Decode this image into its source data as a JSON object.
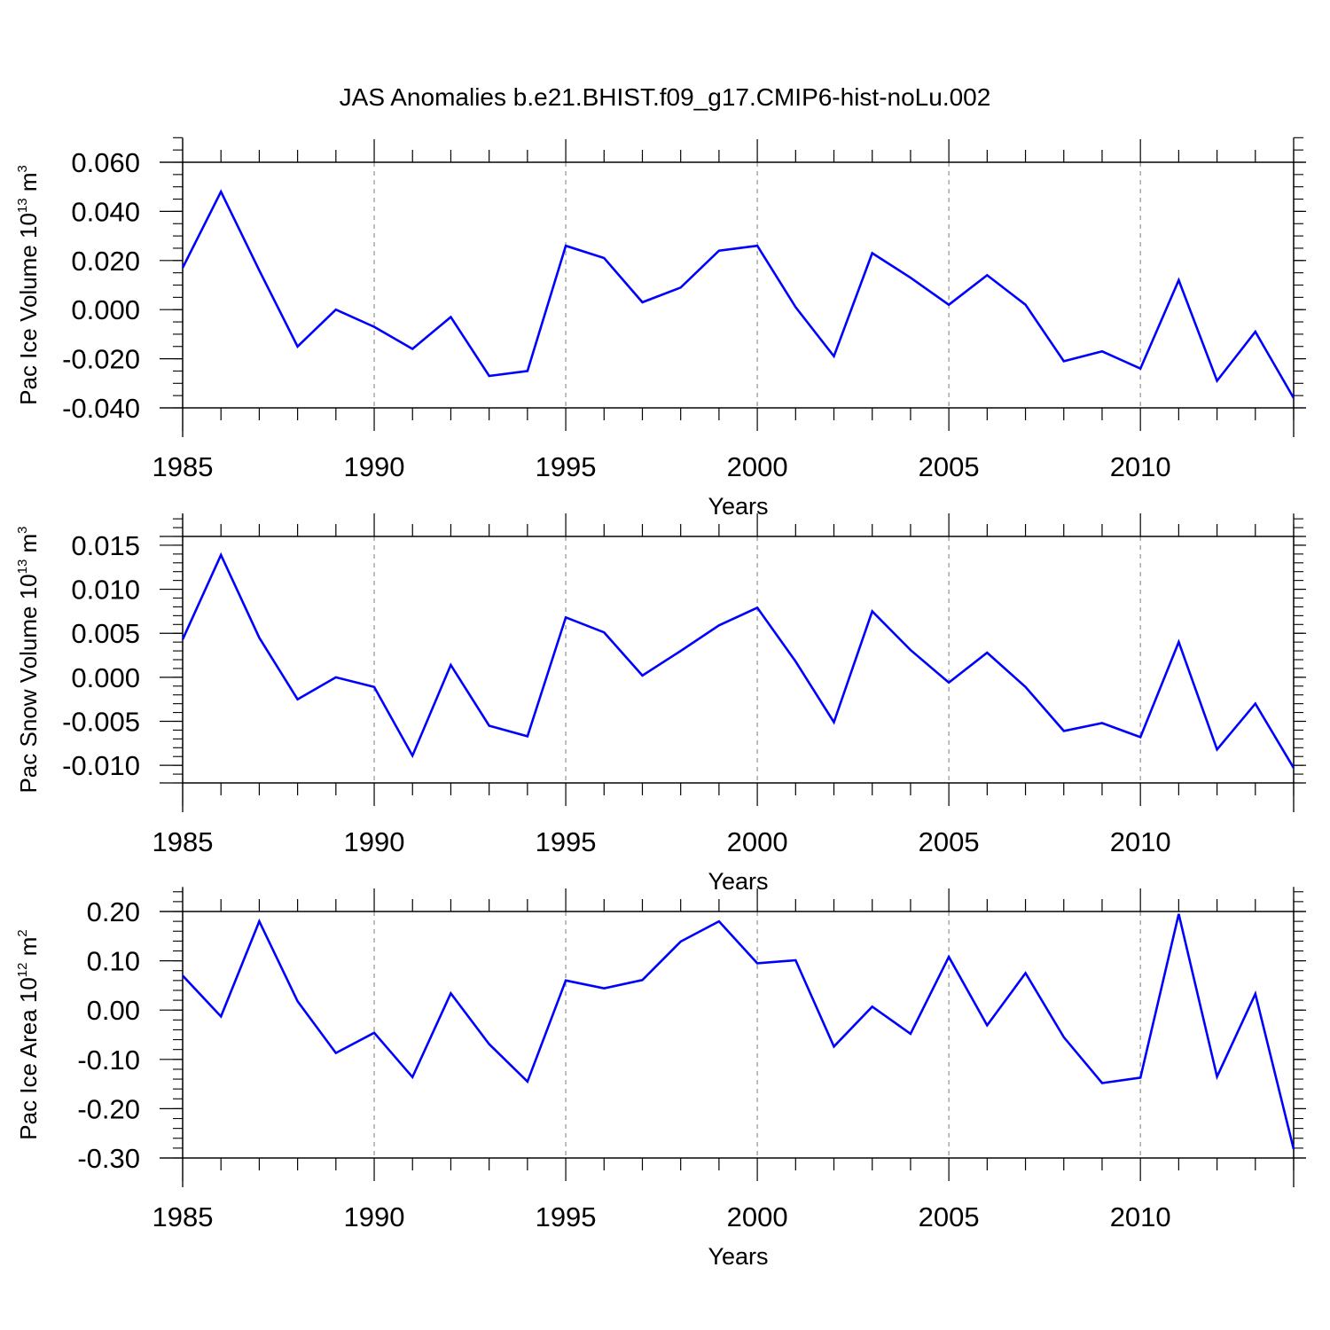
{
  "title": "JAS Anomalies b.e21.BHIST.f09_g17.CMIP6-hist-noLu.002",
  "colors": {
    "series": "#0000ff",
    "frame": "#000000",
    "grid": "#9a9a9a"
  },
  "chart_data": [
    {
      "type": "line",
      "ylabel": {
        "text": "Pac Ice Volume 10",
        "exp": "13",
        "unit": " m",
        "unit_exp": "3"
      },
      "xlabel": "Years",
      "xlim": [
        1985,
        2014
      ],
      "ylim": [
        -0.04,
        0.06
      ],
      "yticks": [
        -0.04,
        -0.02,
        0.0,
        0.02,
        0.04,
        0.06
      ],
      "ytick_labels": [
        "-0.040",
        "-0.020",
        "0.000",
        "0.020",
        "0.040",
        "0.060"
      ],
      "y_minor_step": 0.005,
      "ext_top": 0.01,
      "xticks": [
        1985,
        1990,
        1995,
        2000,
        2005,
        2010
      ],
      "xtick_labels": [
        "1985",
        "1990",
        "1995",
        "2000",
        "2005",
        "2010"
      ],
      "grid_x": [
        1990,
        1995,
        2000,
        2005,
        2010
      ],
      "x": [
        1985,
        1986,
        1987,
        1988,
        1989,
        1990,
        1991,
        1992,
        1993,
        1994,
        1995,
        1996,
        1997,
        1998,
        1999,
        2000,
        2001,
        2002,
        2003,
        2004,
        2005,
        2006,
        2007,
        2008,
        2009,
        2010,
        2011,
        2012,
        2013,
        2014
      ],
      "series": [
        {
          "name": "Pac Ice Volume",
          "values": [
            0.017,
            0.048,
            0.016,
            -0.015,
            0.0,
            -0.007,
            -0.016,
            -0.003,
            -0.027,
            -0.025,
            0.026,
            0.021,
            0.003,
            0.009,
            0.024,
            0.026,
            0.001,
            -0.019,
            0.023,
            0.013,
            0.002,
            0.014,
            0.002,
            -0.021,
            -0.017,
            -0.024,
            0.012,
            -0.029,
            -0.009,
            -0.036
          ]
        }
      ]
    },
    {
      "type": "line",
      "ylabel": {
        "text": "Pac Snow Volume 10",
        "exp": "13",
        "unit": " m",
        "unit_exp": "3"
      },
      "xlabel": "Years",
      "xlim": [
        1985,
        2014
      ],
      "ylim": [
        -0.012,
        0.016
      ],
      "yticks": [
        -0.01,
        -0.005,
        0.0,
        0.005,
        0.01,
        0.015
      ],
      "ytick_labels": [
        "-0.010",
        "-0.005",
        "0.000",
        "0.005",
        "0.010",
        "0.015"
      ],
      "y_minor_step": 0.001,
      "ext_top": 0.0026,
      "xticks": [
        1985,
        1990,
        1995,
        2000,
        2005,
        2010
      ],
      "xtick_labels": [
        "1985",
        "1990",
        "1995",
        "2000",
        "2005",
        "2010"
      ],
      "grid_x": [
        1990,
        1995,
        2000,
        2005,
        2010
      ],
      "x": [
        1985,
        1986,
        1987,
        1988,
        1989,
        1990,
        1991,
        1992,
        1993,
        1994,
        1995,
        1996,
        1997,
        1998,
        1999,
        2000,
        2001,
        2002,
        2003,
        2004,
        2005,
        2006,
        2007,
        2008,
        2009,
        2010,
        2011,
        2012,
        2013,
        2014
      ],
      "series": [
        {
          "name": "Pac Snow Volume",
          "values": [
            0.0043,
            0.0139,
            0.0045,
            -0.0025,
            0.0,
            -0.0011,
            -0.0089,
            0.0014,
            -0.0055,
            -0.0067,
            0.0068,
            0.0051,
            0.0002,
            0.003,
            0.0059,
            0.0079,
            0.0018,
            -0.0051,
            0.0075,
            0.0031,
            -0.0006,
            0.0028,
            -0.0011,
            -0.0061,
            -0.0052,
            -0.0068,
            0.004,
            -0.0082,
            -0.003,
            -0.0103
          ]
        }
      ]
    },
    {
      "type": "line",
      "ylabel": {
        "text": "Pac Ice Area 10",
        "exp": "12",
        "unit": " m",
        "unit_exp": "2"
      },
      "xlabel": "Years",
      "xlim": [
        1985,
        2014
      ],
      "ylim": [
        -0.3,
        0.2
      ],
      "yticks": [
        -0.3,
        -0.2,
        -0.1,
        0.0,
        0.1,
        0.2
      ],
      "ytick_labels": [
        "-0.30",
        "-0.20",
        "0.00",
        "0.10",
        "0.20"
      ],
      "ytick_labels_full": [
        "-0.30",
        "-0.20",
        "-0.10",
        "0.00",
        "0.10",
        "0.20"
      ],
      "y_minor_step": 0.02,
      "ext_top": 0.05,
      "xticks": [
        1985,
        1990,
        1995,
        2000,
        2005,
        2010
      ],
      "xtick_labels": [
        "1985",
        "1990",
        "1995",
        "2000",
        "2005",
        "2010"
      ],
      "grid_x": [
        1990,
        1995,
        2000,
        2005,
        2010
      ],
      "x": [
        1985,
        1986,
        1987,
        1988,
        1989,
        1990,
        1991,
        1992,
        1993,
        1994,
        1995,
        1996,
        1997,
        1998,
        1999,
        2000,
        2001,
        2002,
        2003,
        2004,
        2005,
        2006,
        2007,
        2008,
        2009,
        2010,
        2011,
        2012,
        2013,
        2014
      ],
      "series": [
        {
          "name": "Pac Ice Area",
          "values": [
            0.07,
            -0.013,
            0.18,
            0.018,
            -0.087,
            -0.046,
            -0.136,
            0.034,
            -0.069,
            -0.145,
            0.06,
            0.044,
            0.061,
            0.139,
            0.18,
            0.095,
            0.101,
            -0.074,
            0.007,
            -0.048,
            0.108,
            -0.031,
            0.075,
            -0.055,
            -0.148,
            -0.137,
            0.195,
            -0.135,
            0.033,
            -0.282
          ]
        }
      ]
    }
  ]
}
